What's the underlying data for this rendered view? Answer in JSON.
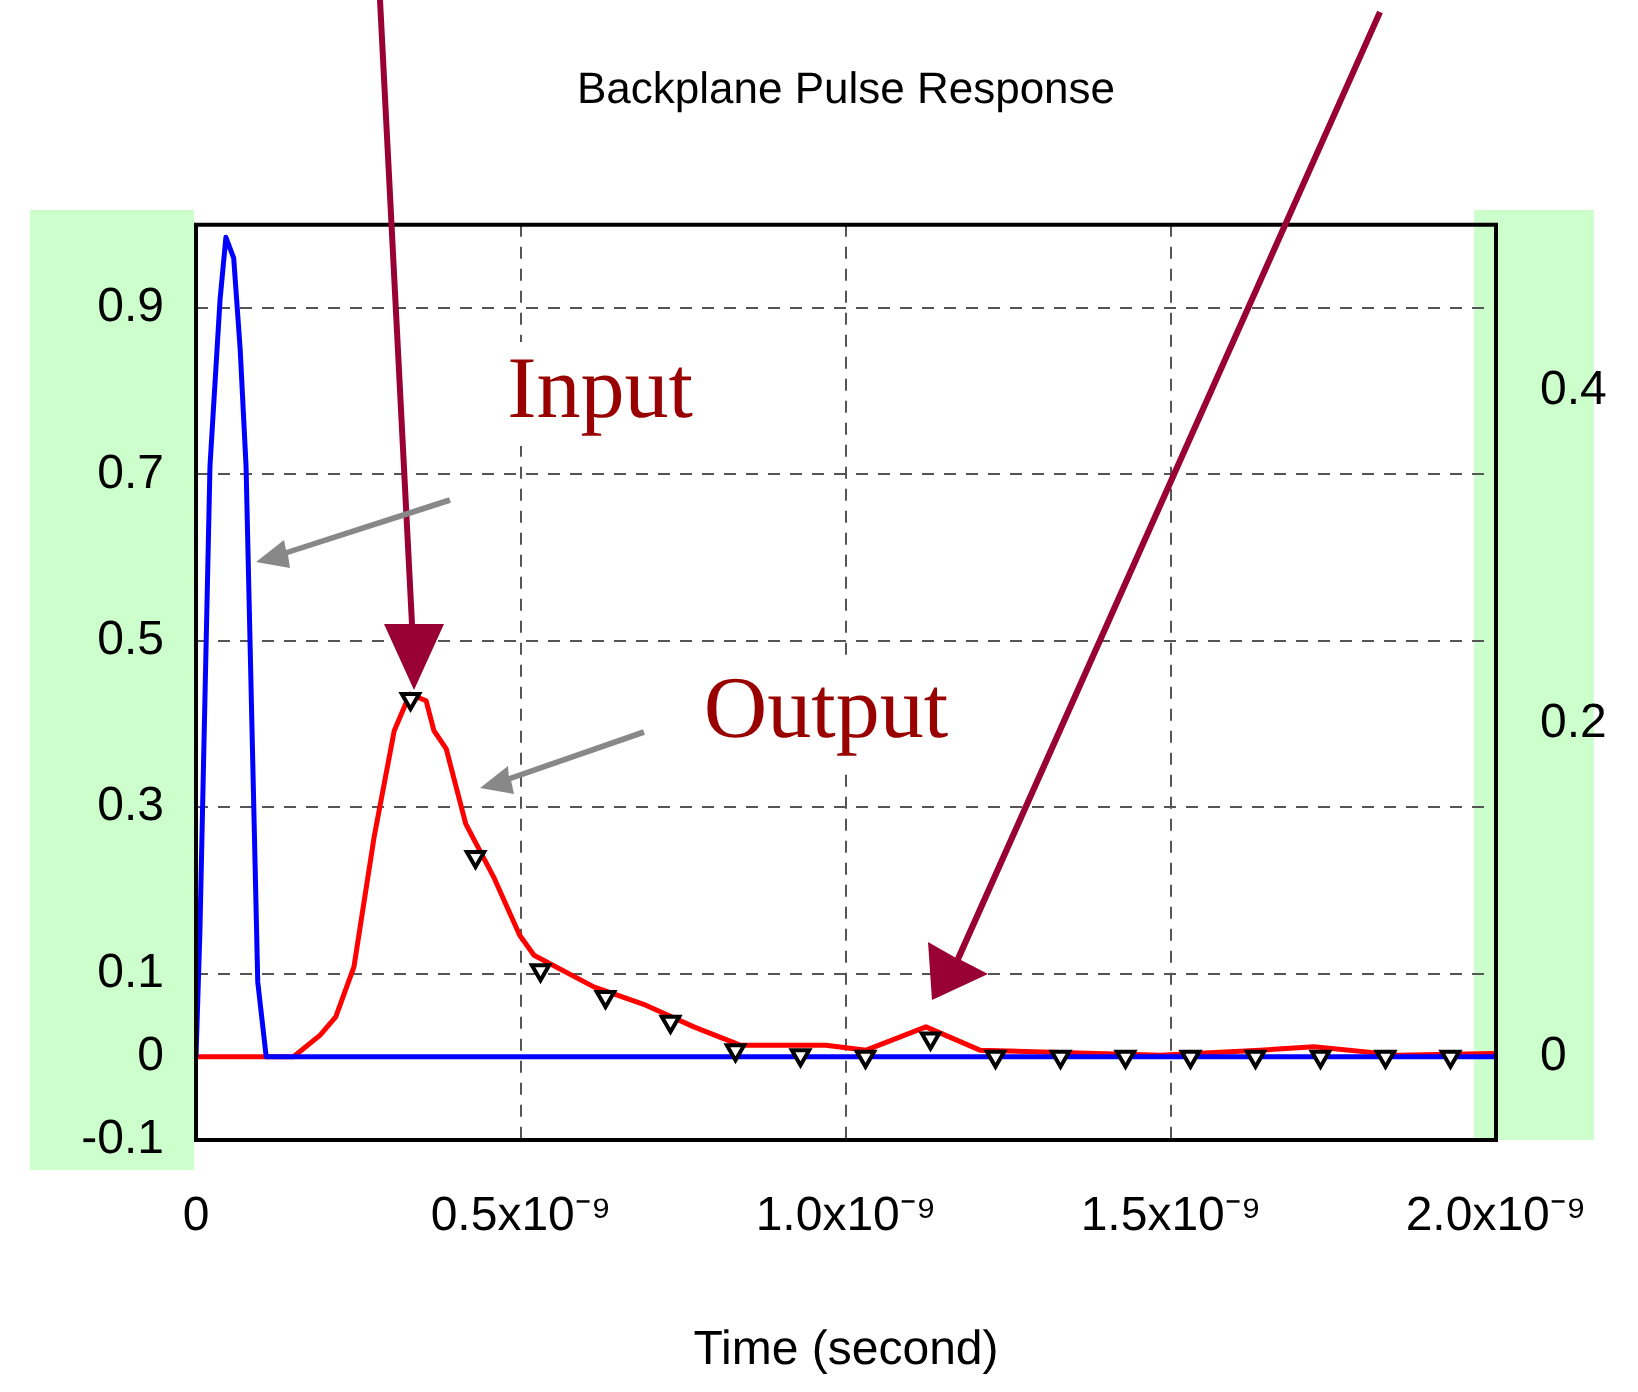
{
  "chart_data": {
    "type": "line",
    "title": "Backplane Pulse Response",
    "xlabel": "Time (second)",
    "xlim": [
      0,
      2e-09
    ],
    "xticks": [
      0,
      {
        "value": 5e-10,
        "label": "0.5x10⁻⁹"
      },
      {
        "value": 1e-09,
        "label": "1.0x10⁻⁹"
      },
      {
        "value": 1.5e-09,
        "label": "1.5x10⁻⁹"
      },
      {
        "value": 2e-09,
        "label": "2.0x10⁻⁹"
      }
    ],
    "ylim": [
      -0.1,
      1.0
    ],
    "yticks": [
      -0.1,
      0,
      0.1,
      0.3,
      0.5,
      0.7,
      0.9
    ],
    "y2lim": [
      -0.05,
      0.5
    ],
    "y2ticks": [
      0,
      0.2,
      0.4
    ],
    "grid": true,
    "legend": false,
    "series": [
      {
        "name": "Input",
        "color": "#0000ff",
        "marker": "none",
        "x": [
          0,
          6e-12,
          2.15e-11,
          3.7e-11,
          4.6e-11,
          5.8e-11,
          6.8e-11,
          7.7e-11,
          9.5e-11,
          1.08e-10,
          2e-09
        ],
        "values": [
          0,
          0.15,
          0.71,
          0.91,
          0.985,
          0.96,
          0.85,
          0.71,
          0.09,
          0,
          0
        ]
      },
      {
        "name": "Output",
        "axis": "y2",
        "color": "#ff0000",
        "marker": "none",
        "x": [
          0,
          1.5e-10,
          1.91e-10,
          2.15e-10,
          2.43e-10,
          2.74e-10,
          3.05e-10,
          3.29e-10,
          3.54e-10,
          3.66e-10,
          3.85e-10,
          4.15e-10,
          4.58e-10,
          4.98e-10,
          5.2e-10,
          6.12e-10,
          6.92e-10,
          7.66e-10,
          8.37e-10,
          9.69e-10,
          1.031e-09,
          1.123e-09,
          1.206e-09,
          1.483e-09,
          1.637e-09,
          1.72e-09,
          1.85e-09,
          1.997e-09
        ],
        "values": [
          0,
          0,
          0.013,
          0.024,
          0.054,
          0.132,
          0.196,
          0.218,
          0.214,
          0.196,
          0.185,
          0.14,
          0.108,
          0.073,
          0.061,
          0.042,
          0.031,
          0.018,
          0.007,
          0.007,
          0.004,
          0.018,
          0.004,
          0.001,
          0.004,
          0.006,
          0.001,
          0.002
        ]
      },
      {
        "type": "scatter",
        "axis": "y2",
        "color": "#000000",
        "marker": "triangle",
        "x": [
          3.3e-10,
          4.3e-10,
          5.3e-10,
          6.3e-10,
          7.3e-10,
          8.3e-10,
          9.3e-10,
          1.03e-09,
          1.13e-09,
          1.23e-09,
          1.33e-09,
          1.43e-09,
          1.53e-09,
          1.63e-09,
          1.73e-09,
          1.83e-09,
          1.93e-09
        ],
        "values": [
          0.215,
          0.12,
          0.052,
          0.036,
          0.021,
          0.004,
          0.001,
          0,
          0.011,
          0,
          0,
          0,
          0,
          0,
          0,
          0,
          0
        ]
      }
    ]
  }
}
